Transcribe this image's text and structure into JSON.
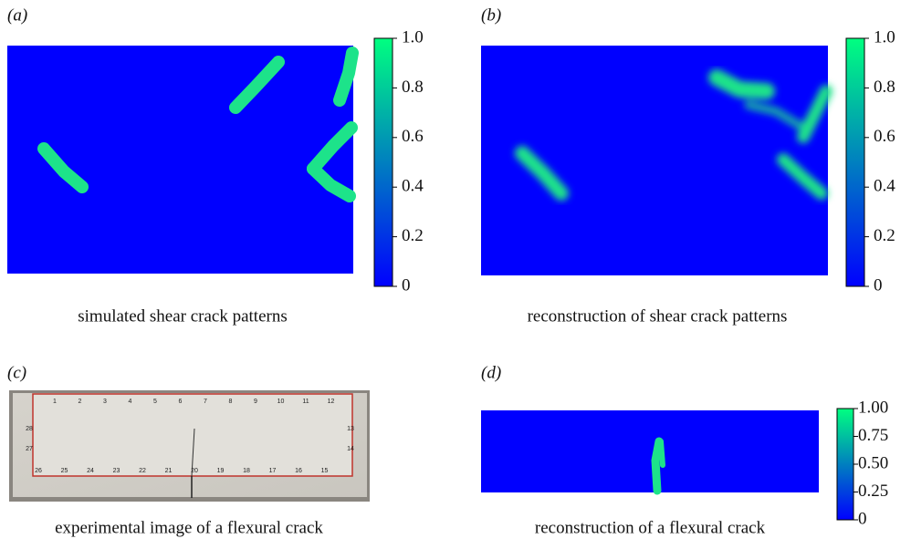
{
  "panels": [
    {
      "label": "(a)",
      "caption": "simulated shear crack patterns",
      "colorbar": {
        "lim": [
          0,
          1
        ],
        "ticks": [
          {
            "value": 1,
            "label": "1.0"
          },
          0.8,
          0.6,
          0.4,
          0.2,
          0
        ]
      }
    },
    {
      "label": "(b)",
      "caption": "reconstruction of shear crack patterns",
      "colorbar": {
        "lim": [
          0,
          1
        ],
        "ticks": [
          {
            "value": 1,
            "label": "1.0"
          },
          0.8,
          0.6,
          0.4,
          0.2,
          0
        ]
      }
    },
    {
      "label": "(c)",
      "caption": "experimental image of a flexural crack",
      "photo_labels": {
        "top": [
          "1",
          "2",
          "3",
          "4",
          "5",
          "6",
          "7",
          "8",
          "9",
          "10",
          "11",
          "12"
        ],
        "right": [
          "13",
          "14"
        ],
        "bottom": [
          "26",
          "25",
          "24",
          "23",
          "22",
          "21",
          "20",
          "19",
          "18",
          "17",
          "16",
          "15"
        ],
        "left": [
          "28",
          "27"
        ]
      }
    },
    {
      "label": "(d)",
      "caption": "reconstruction of a flexural crack",
      "colorbar": {
        "lim": [
          0,
          1
        ],
        "ticks": [
          {
            "value": 1,
            "label": "1.00"
          },
          0.75,
          {
            "value": 0.5,
            "label": "0.50"
          },
          0.25,
          0
        ]
      }
    }
  ]
}
